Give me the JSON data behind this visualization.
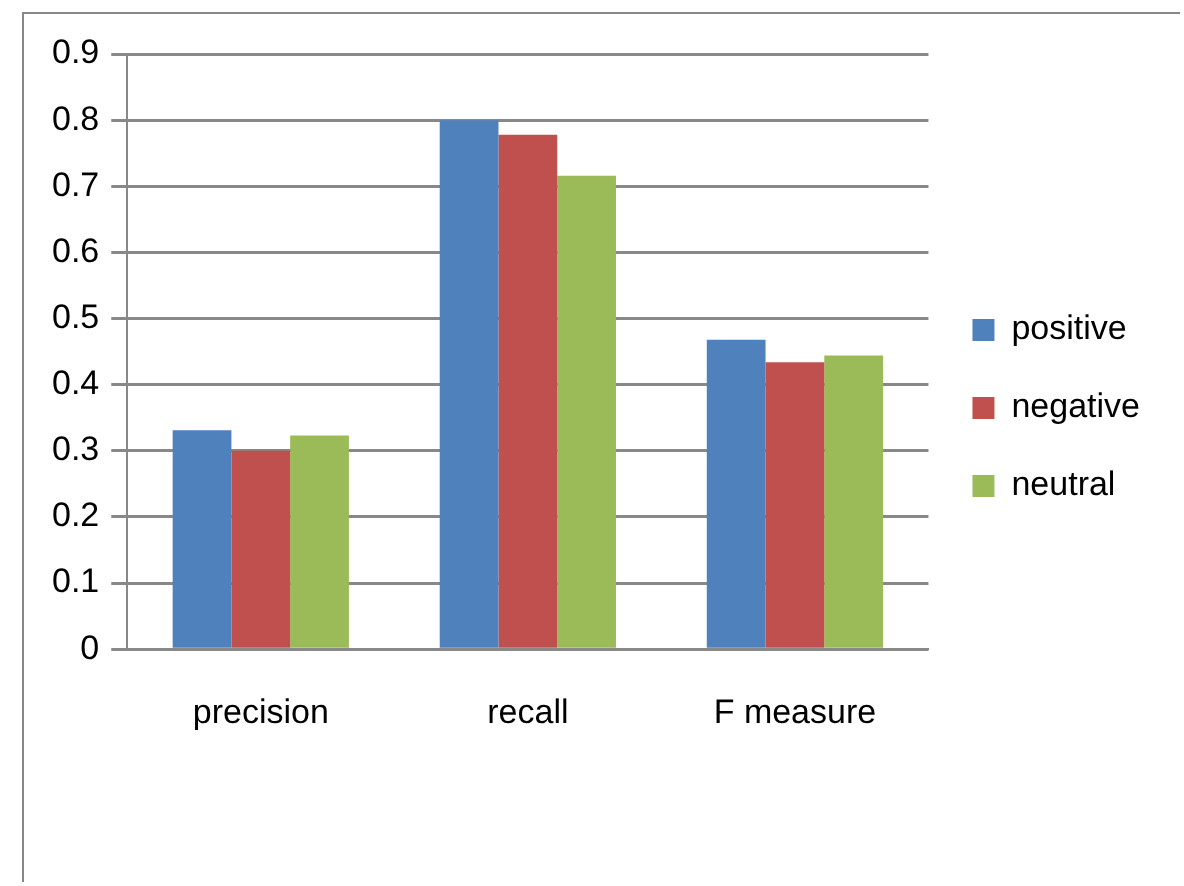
{
  "chart_data": {
    "type": "bar",
    "categories": [
      "precision",
      "recall",
      "F measure"
    ],
    "series": [
      {
        "name": "positive",
        "color": "#4f81bd",
        "values": [
          0.331,
          0.8,
          0.468
        ]
      },
      {
        "name": "negative",
        "color": "#c0504d",
        "values": [
          0.3,
          0.778,
          0.434
        ]
      },
      {
        "name": "neutral",
        "color": "#9bbb59",
        "values": [
          0.323,
          0.716,
          0.444
        ]
      }
    ],
    "ylim": [
      0,
      0.9
    ],
    "yticks": [
      0,
      0.1,
      0.2,
      0.3,
      0.4,
      0.5,
      0.6,
      0.7,
      0.8,
      0.9
    ],
    "grid": "y",
    "legend": "right"
  }
}
